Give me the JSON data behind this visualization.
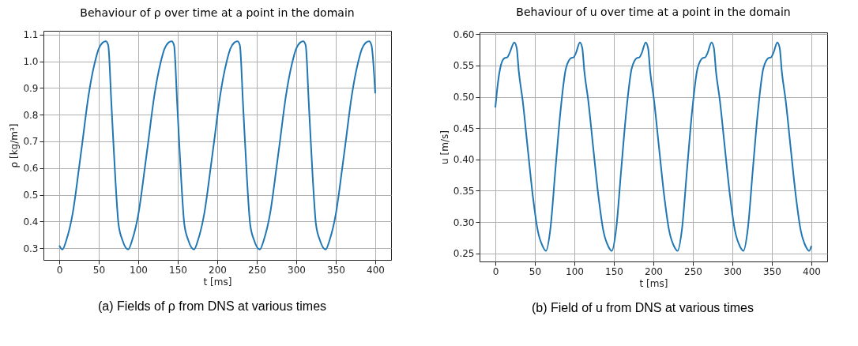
{
  "chart_data": [
    {
      "type": "line",
      "title": "Behaviour of ρ over time at a point in the domain",
      "xlabel": "t [ms]",
      "ylabel": "ρ [kg/m³]",
      "annotations": [
        "(a) Fields of ρ from DNS at various times"
      ],
      "xlim": [
        -20,
        420
      ],
      "ylim": [
        0.256,
        1.114
      ],
      "xticks": [
        0,
        50,
        100,
        150,
        200,
        250,
        300,
        350,
        400
      ],
      "yticks": [
        0.3,
        0.4,
        0.5,
        0.6,
        0.7,
        0.8,
        0.9,
        {
          "value": 1,
          "label": "1.0"
        },
        1.1
      ],
      "grid": true,
      "marker": "none",
      "line_style": "solid",
      "series": [
        {
          "color": "#1f77b4",
          "x": [
            0,
            4,
            9,
            17,
            25,
            29,
            37,
            41,
            45,
            50,
            55,
            59,
            62,
            66,
            71,
            75,
            80,
            87.3,
            92.3,
            100.3,
            108.3,
            112.3,
            120.3,
            124.3,
            128.3,
            133.3,
            138.3,
            142.3,
            145.3,
            149.3,
            154.3,
            158.3,
            163.3,
            170.6,
            175.6,
            183.6,
            191.6,
            195.6,
            203.6,
            207.6,
            211.6,
            216.6,
            221.6,
            225.6,
            228.6,
            232.6,
            237.6,
            241.6,
            246.6,
            253.9,
            258.9,
            266.9,
            274.9,
            278.9,
            286.9,
            290.9,
            294.9,
            299.9,
            304.9,
            308.9,
            311.9,
            315.9,
            320.9,
            324.9,
            329.9,
            337.2,
            342.2,
            350.2,
            358.2,
            362.2,
            370.2,
            374.2,
            378.2,
            383.2,
            388.2,
            392.2,
            395.2,
            400
          ],
          "values": [
            0.31,
            0.295,
            0.33,
            0.43,
            0.6,
            0.69,
            0.87,
            0.94,
            0.995,
            1.047,
            1.07,
            1.075,
            1.06,
            0.84,
            0.56,
            0.39,
            0.33,
            0.295,
            0.33,
            0.43,
            0.6,
            0.69,
            0.87,
            0.94,
            0.995,
            1.047,
            1.07,
            1.075,
            1.06,
            0.84,
            0.56,
            0.39,
            0.33,
            0.295,
            0.33,
            0.43,
            0.6,
            0.69,
            0.87,
            0.94,
            0.995,
            1.047,
            1.07,
            1.075,
            1.06,
            0.84,
            0.56,
            0.39,
            0.33,
            0.295,
            0.33,
            0.43,
            0.6,
            0.69,
            0.87,
            0.94,
            0.995,
            1.047,
            1.07,
            1.075,
            1.06,
            0.84,
            0.56,
            0.39,
            0.33,
            0.295,
            0.33,
            0.43,
            0.6,
            0.69,
            0.87,
            0.94,
            0.995,
            1.047,
            1.07,
            1.075,
            1.06,
            0.88
          ]
        }
      ]
    },
    {
      "type": "line",
      "title": "Behaviour of u over time at a point in the domain",
      "xlabel": "t [ms]",
      "ylabel": "u [m/s]",
      "annotations": [
        "(b) Field of u from DNS at various times"
      ],
      "xlim": [
        -20,
        420
      ],
      "ylim": [
        0.237,
        0.603
      ],
      "xticks": [
        0,
        50,
        100,
        150,
        200,
        250,
        300,
        350,
        400
      ],
      "yticks": [
        0.25,
        {
          "value": 0.3,
          "label": "0.30"
        },
        0.35,
        {
          "value": 0.4,
          "label": "0.40"
        },
        0.45,
        {
          "value": 0.5,
          "label": "0.50"
        },
        0.55,
        {
          "value": 0.6,
          "label": "0.60"
        }
      ],
      "grid": true,
      "marker": "none",
      "line_style": "solid",
      "series": [
        {
          "color": "#1f77b4",
          "x": [
            0,
            3,
            6,
            9,
            12,
            15,
            18,
            24,
            27,
            29.7,
            34.5,
            41,
            47.3,
            53.7,
            60,
            64,
            69.7,
            76,
            82.5,
            89,
            93,
            96,
            99,
            102,
            107,
            110,
            112.7,
            117.5,
            124,
            130.3,
            136.7,
            143,
            147.3,
            153,
            159.3,
            165.8,
            172.3,
            176.3,
            179.3,
            182.3,
            185.3,
            190.3,
            193.3,
            196,
            200.8,
            207.3,
            213.6,
            220,
            226.3,
            230.6,
            236.3,
            242.6,
            249.1,
            255.6,
            259.6,
            262.6,
            265.6,
            268.6,
            273.6,
            276.6,
            279.3,
            284.1,
            290.6,
            296.9,
            303.3,
            309.6,
            313.9,
            319.6,
            325.9,
            332.4,
            338.9,
            342.9,
            345.9,
            348.9,
            351.9,
            356.9,
            359.9,
            362.6,
            367.4,
            373.9,
            380.2,
            386.6,
            392.9,
            397.2,
            400
          ],
          "values": [
            0.483,
            0.52,
            0.545,
            0.558,
            0.562,
            0.563,
            0.57,
            0.587,
            0.578,
            0.54,
            0.495,
            0.417,
            0.343,
            0.286,
            0.261,
            0.254,
            0.29,
            0.384,
            0.478,
            0.544,
            0.558,
            0.562,
            0.563,
            0.57,
            0.587,
            0.578,
            0.54,
            0.495,
            0.417,
            0.343,
            0.286,
            0.261,
            0.254,
            0.29,
            0.384,
            0.478,
            0.544,
            0.558,
            0.562,
            0.563,
            0.57,
            0.587,
            0.578,
            0.54,
            0.495,
            0.417,
            0.343,
            0.286,
            0.261,
            0.254,
            0.29,
            0.384,
            0.478,
            0.544,
            0.558,
            0.562,
            0.563,
            0.57,
            0.587,
            0.578,
            0.54,
            0.495,
            0.417,
            0.343,
            0.286,
            0.261,
            0.254,
            0.29,
            0.384,
            0.478,
            0.544,
            0.558,
            0.562,
            0.563,
            0.57,
            0.587,
            0.578,
            0.54,
            0.495,
            0.417,
            0.343,
            0.286,
            0.261,
            0.254,
            0.262
          ]
        }
      ]
    }
  ]
}
